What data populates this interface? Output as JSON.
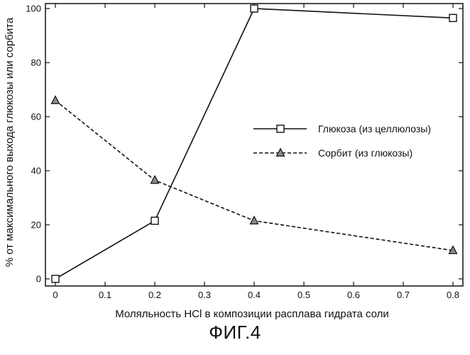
{
  "figure_caption": "ФИГ.4",
  "chart_data": {
    "type": "line",
    "title": "",
    "xlabel": "Моляльность HCl в композиции расплава гидрата соли",
    "ylabel": "% от максимального выхода глюкозы или сорбита",
    "xlim": [
      0,
      0.8
    ],
    "ylim": [
      0,
      100
    ],
    "x_ticks": [
      "0",
      "0.1",
      "0.2",
      "0.3",
      "0.4",
      "0.5",
      "0.6",
      "0.7",
      "0.8"
    ],
    "y_ticks": [
      "0",
      "20",
      "40",
      "60",
      "80",
      "100"
    ],
    "grid": false,
    "legend_position": "center-right",
    "series": [
      {
        "name": "Глюкоза (из целлюлозы)",
        "line_style": "solid",
        "marker": "open-square",
        "x": [
          0,
          0.2,
          0.4,
          0.8
        ],
        "y": [
          0,
          21.5,
          100,
          96.5
        ]
      },
      {
        "name": "Сорбит (из глюкозы)",
        "line_style": "dashed",
        "marker": "filled-triangle",
        "x": [
          0,
          0.2,
          0.4,
          0.8
        ],
        "y": [
          66,
          36.5,
          21.5,
          10.5
        ]
      }
    ],
    "colors": {
      "line": "#111111",
      "marker_fill": "#8a8a8a"
    }
  }
}
